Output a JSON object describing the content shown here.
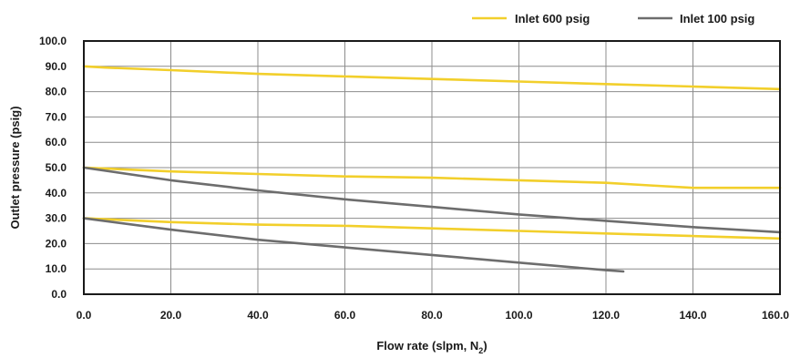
{
  "chart_data": {
    "type": "line",
    "xlabel": "Flow rate (slpm, N",
    "xlabel_sub": "2",
    "xlabel_close": ")",
    "ylabel": "Outlet pressure (psig)",
    "xlim": [
      0,
      160
    ],
    "ylim": [
      0,
      100
    ],
    "xticks": [
      "0.0",
      "20.0",
      "40.0",
      "60.0",
      "80.0",
      "100.0",
      "120.0",
      "140.0",
      "160.0"
    ],
    "yticks": [
      "0.0",
      "10.0",
      "20.0",
      "30.0",
      "40.0",
      "50.0",
      "60.0",
      "70.0",
      "80.0",
      "90.0",
      "100.0"
    ],
    "xtick_values": [
      0,
      20,
      40,
      60,
      80,
      100,
      120,
      140,
      160
    ],
    "ytick_values": [
      0,
      10,
      20,
      30,
      40,
      50,
      60,
      70,
      80,
      90,
      100
    ],
    "grid": true,
    "legend_position": "top-right",
    "legend": [
      {
        "name": "Inlet 600 psig",
        "color": "#f2cf2b"
      },
      {
        "name": "Inlet 100 psig",
        "color": "#6d6d6d"
      }
    ],
    "series": [
      {
        "legend": 0,
        "color": "#f2cf2b",
        "x": [
          0,
          5,
          20,
          40,
          60,
          80,
          100,
          120,
          140,
          160
        ],
        "y": [
          90,
          89.5,
          88.5,
          87,
          86,
          85,
          84,
          83,
          82,
          81
        ]
      },
      {
        "legend": 0,
        "color": "#f2cf2b",
        "x": [
          0,
          20,
          40,
          60,
          80,
          100,
          120,
          130,
          140,
          160
        ],
        "y": [
          50,
          48.5,
          47.5,
          46.5,
          46,
          45,
          44,
          43,
          42,
          42
        ]
      },
      {
        "legend": 0,
        "color": "#f2cf2b",
        "x": [
          0,
          20,
          40,
          60,
          80,
          100,
          120,
          140,
          160
        ],
        "y": [
          30,
          28.5,
          27.5,
          27,
          26,
          25,
          24,
          23,
          22
        ]
      },
      {
        "legend": 1,
        "color": "#6d6d6d",
        "x": [
          0,
          20,
          40,
          60,
          80,
          100,
          120,
          140,
          160
        ],
        "y": [
          50,
          45,
          41,
          37.5,
          34.5,
          31.5,
          29,
          26.5,
          24.5
        ]
      },
      {
        "legend": 1,
        "color": "#6d6d6d",
        "x": [
          0,
          20,
          40,
          60,
          80,
          100,
          120,
          124
        ],
        "y": [
          30,
          25.5,
          21.5,
          18.5,
          15.5,
          12.5,
          9.5,
          9
        ]
      }
    ]
  }
}
